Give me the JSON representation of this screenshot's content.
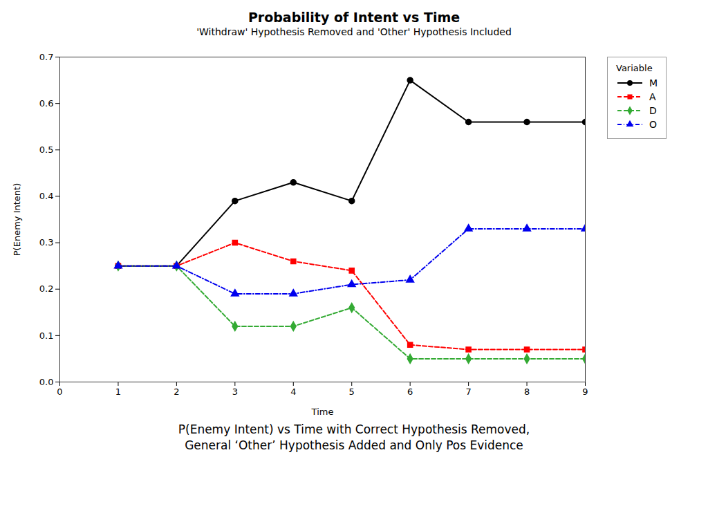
{
  "chart_data": {
    "type": "line",
    "title": "Probability of Intent vs Time",
    "subtitle": "'Withdraw' Hypothesis Removed and 'Other' Hypothesis Included",
    "xlabel": "Time",
    "ylabel": "P(Enemy Intent)",
    "caption": [
      "P(Enemy Intent) vs Time with Correct Hypothesis Removed,",
      "General ‘Other’ Hypothesis Added and Only Pos Evidence"
    ],
    "x": [
      1,
      2,
      3,
      4,
      5,
      6,
      7,
      8,
      9
    ],
    "series": [
      {
        "name": "M",
        "color": "#000000",
        "marker": "circle",
        "line_style": "solid",
        "values": [
          0.25,
          0.25,
          0.39,
          0.43,
          0.39,
          0.65,
          0.56,
          0.56,
          0.56
        ]
      },
      {
        "name": "A",
        "color": "#ff0000",
        "marker": "square",
        "line_style": "dashed",
        "values": [
          0.25,
          0.25,
          0.3,
          0.26,
          0.24,
          0.08,
          0.07,
          0.07,
          0.07
        ]
      },
      {
        "name": "D",
        "color": "#33aa33",
        "marker": "diamond",
        "line_style": "dashed",
        "values": [
          0.25,
          0.25,
          0.12,
          0.12,
          0.16,
          0.05,
          0.05,
          0.05,
          0.05
        ]
      },
      {
        "name": "O",
        "color": "#0000ee",
        "marker": "triangle",
        "line_style": "dashdot",
        "values": [
          0.25,
          0.25,
          0.19,
          0.19,
          0.21,
          0.22,
          0.33,
          0.33,
          0.33
        ]
      }
    ],
    "xlim": [
      0,
      9
    ],
    "xticks": [
      0,
      1,
      2,
      3,
      4,
      5,
      6,
      7,
      8,
      9
    ],
    "ylim": [
      0.0,
      0.7
    ],
    "yticks": [
      {
        "value": 0,
        "label": "0.0"
      },
      0.1,
      0.2,
      0.3,
      0.4,
      0.5,
      0.6,
      0.7
    ],
    "legend_title": "Variable",
    "legend": "right",
    "grid": false
  }
}
